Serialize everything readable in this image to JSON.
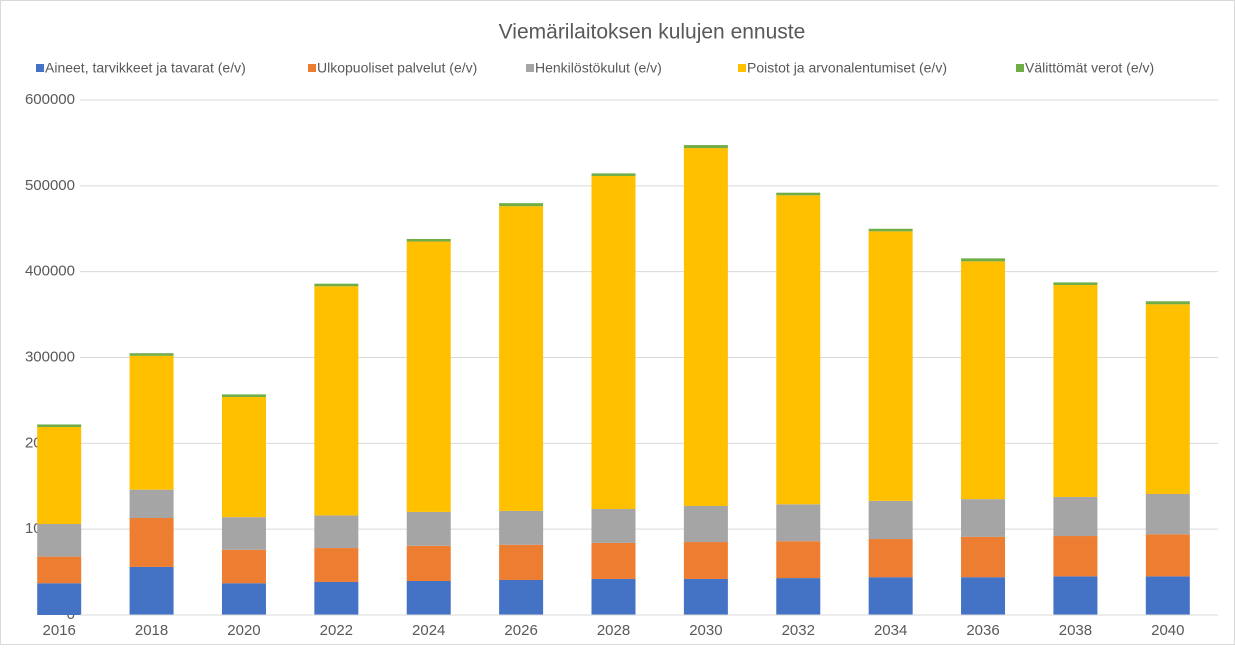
{
  "chart_data": {
    "type": "stacked_bar",
    "title": "Viemärilaitoksen kulujen ennuste",
    "categories": [
      "2016",
      "2018",
      "2020",
      "2022",
      "2024",
      "2026",
      "2028",
      "2030",
      "2032",
      "2034",
      "2036",
      "2038",
      "2040"
    ],
    "series": [
      {
        "name": "Aineet, tarvikkeet ja tavarat (e/v)",
        "color": "#4472c4",
        "values": [
          37000,
          56000,
          37000,
          38500,
          39600,
          40800,
          42000,
          42000,
          43000,
          44000,
          44000,
          45000,
          45000
        ]
      },
      {
        "name": "Ulkopuoliset palvelut (e/v)",
        "color": "#ed7d31",
        "values": [
          31000,
          57000,
          39000,
          39500,
          41000,
          41000,
          42000,
          43000,
          43000,
          44500,
          47000,
          47000,
          49000
        ]
      },
      {
        "name": "Henkilöstökulut (e/v)",
        "color": "#a5a5a5",
        "values": [
          38000,
          33000,
          38000,
          38000,
          39500,
          39500,
          39500,
          42000,
          43000,
          44500,
          44000,
          45500,
          47000
        ]
      },
      {
        "name": "Poistot ja arvonalentumiset (e/v)",
        "color": "#ffc000",
        "values": [
          113000,
          156000,
          140000,
          267000,
          315000,
          355000,
          388000,
          417000,
          360000,
          314000,
          277000,
          247000,
          221000
        ]
      },
      {
        "name": "Välittömät verot (e/v)",
        "color": "#70ad47",
        "values": [
          3000,
          3000,
          3000,
          3000,
          3000,
          3500,
          3000,
          3500,
          3000,
          3000,
          3500,
          3000,
          3500
        ]
      }
    ],
    "ylim": [
      0,
      600000
    ],
    "yticks": [
      0,
      100000,
      200000,
      300000,
      400000,
      500000,
      600000
    ],
    "grid": true,
    "legend": "top"
  }
}
